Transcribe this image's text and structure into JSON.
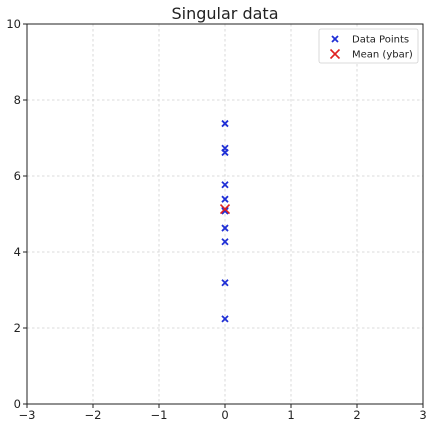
{
  "chart_data": {
    "type": "scatter",
    "title": "Singular data",
    "xlabel": "",
    "ylabel": "",
    "xlim": [
      -3,
      3
    ],
    "ylim": [
      0,
      10
    ],
    "x_ticks": [
      -3,
      -2,
      -1,
      0,
      1,
      2,
      3
    ],
    "y_ticks": [
      0,
      2,
      4,
      6,
      8,
      10
    ],
    "x_tick_labels": [
      "−3",
      "−2",
      "−1",
      "0",
      "1",
      "2",
      "3"
    ],
    "y_tick_labels": [
      "0",
      "2",
      "4",
      "6",
      "8",
      "10"
    ],
    "grid": true,
    "legend_position": "top-right",
    "series": [
      {
        "name": "Data Points",
        "marker": "x",
        "color": "#1f2fd6",
        "x": [
          0,
          0,
          0,
          0,
          0,
          0,
          0,
          0,
          0,
          0,
          0
        ],
        "y": [
          7.38,
          6.73,
          6.62,
          5.77,
          5.39,
          5.08,
          4.63,
          4.27,
          3.19,
          2.24,
          5.1
        ]
      },
      {
        "name": "Mean (ybar)",
        "marker": "x",
        "color": "#e02020",
        "x": [
          0
        ],
        "y": [
          5.13
        ]
      }
    ]
  }
}
